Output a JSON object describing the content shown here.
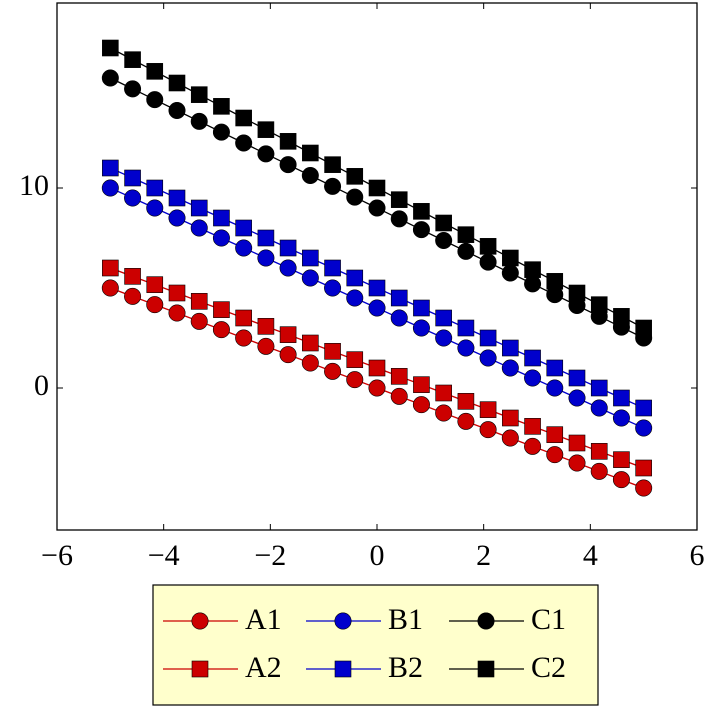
{
  "chart_data": {
    "type": "line",
    "x": [
      -5,
      -4.583,
      -4.167,
      -3.75,
      -3.333,
      -2.917,
      -2.5,
      -2.083,
      -1.667,
      -1.25,
      -0.833,
      -0.417,
      0,
      0.417,
      0.833,
      1.25,
      1.667,
      2.083,
      2.5,
      2.917,
      3.333,
      3.75,
      4.167,
      4.583,
      5
    ],
    "series": [
      {
        "name": "A1",
        "color": "#cc0000",
        "marker": "circle",
        "values": [
          5,
          4.583,
          4.167,
          3.75,
          3.333,
          2.917,
          2.5,
          2.083,
          1.667,
          1.25,
          0.833,
          0.417,
          0,
          -0.417,
          -0.833,
          -1.25,
          -1.667,
          -2.083,
          -2.5,
          -2.917,
          -3.333,
          -3.75,
          -4.167,
          -4.583,
          -5
        ]
      },
      {
        "name": "B1",
        "color": "#0000cc",
        "marker": "circle",
        "values": [
          10,
          9.5,
          9,
          8.5,
          8,
          7.5,
          7,
          6.5,
          6,
          5.5,
          5,
          4.5,
          4,
          3.5,
          3,
          2.5,
          2,
          1.5,
          1,
          0.5,
          0,
          -0.5,
          -1,
          -1.5,
          -2
        ]
      },
      {
        "name": "C1",
        "color": "#000000",
        "marker": "circle",
        "values": [
          15.5,
          14.958,
          14.417,
          13.875,
          13.333,
          12.792,
          12.25,
          11.708,
          11.167,
          10.625,
          10.083,
          9.542,
          9,
          8.458,
          7.917,
          7.375,
          6.833,
          6.292,
          5.75,
          5.208,
          4.667,
          4.125,
          3.583,
          3.042,
          2.5
        ]
      },
      {
        "name": "A2",
        "color": "#cc0000",
        "marker": "square",
        "values": [
          6,
          5.583,
          5.167,
          4.75,
          4.333,
          3.917,
          3.5,
          3.083,
          2.667,
          2.25,
          1.833,
          1.417,
          1,
          0.583,
          0.167,
          -0.25,
          -0.667,
          -1.083,
          -1.5,
          -1.917,
          -2.333,
          -2.75,
          -3.167,
          -3.583,
          -4
        ]
      },
      {
        "name": "B2",
        "color": "#0000cc",
        "marker": "square",
        "values": [
          11,
          10.5,
          10,
          9.5,
          9,
          8.5,
          8,
          7.5,
          7,
          6.5,
          6,
          5.5,
          5,
          4.5,
          4,
          3.5,
          3,
          2.5,
          2,
          1.5,
          1,
          0.5,
          0,
          -0.5,
          -1
        ]
      },
      {
        "name": "C2",
        "color": "#000000",
        "marker": "square",
        "values": [
          17,
          16.417,
          15.833,
          15.25,
          14.667,
          14.083,
          13.5,
          12.917,
          12.333,
          11.75,
          11.167,
          10.583,
          10,
          9.417,
          8.833,
          8.25,
          7.667,
          7.083,
          6.5,
          5.917,
          5.333,
          4.75,
          4.167,
          3.583,
          3
        ]
      }
    ],
    "xlim": [
      -6,
      6
    ],
    "xticks": [
      {
        "value": -6,
        "label": "−6"
      },
      {
        "value": -4,
        "label": "−4"
      },
      {
        "value": -2,
        "label": "−2"
      },
      0,
      2,
      4,
      6
    ],
    "ylim": [
      -7.1,
      19.25
    ],
    "yticks": [
      0,
      10
    ],
    "legend_position": "below",
    "legend_columns": 3,
    "legend_background": "#ffffcc"
  }
}
